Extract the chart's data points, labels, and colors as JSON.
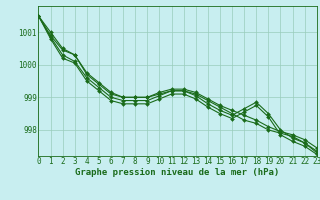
{
  "title": "Graphe pression niveau de la mer (hPa)",
  "xlabel_hours": [
    0,
    1,
    2,
    3,
    4,
    5,
    6,
    7,
    8,
    9,
    10,
    11,
    12,
    13,
    14,
    15,
    16,
    17,
    18,
    19,
    20,
    21,
    22,
    23
  ],
  "line1": [
    1001.5,
    1001.0,
    1000.5,
    1000.3,
    999.7,
    999.4,
    999.1,
    999.0,
    999.0,
    999.0,
    999.1,
    999.2,
    999.2,
    999.1,
    998.9,
    998.7,
    998.5,
    998.3,
    998.2,
    998.0,
    997.9,
    997.8,
    997.6,
    997.3
  ],
  "line2": [
    1001.5,
    1000.9,
    1000.45,
    1000.3,
    999.75,
    999.45,
    999.15,
    999.0,
    999.0,
    999.0,
    999.15,
    999.25,
    999.25,
    999.15,
    998.95,
    998.75,
    998.6,
    998.45,
    998.3,
    998.1,
    997.95,
    997.85,
    997.7,
    997.45
  ],
  "line3": [
    1001.5,
    1000.85,
    1000.3,
    1000.1,
    999.6,
    999.3,
    999.0,
    998.9,
    998.9,
    998.9,
    999.05,
    999.2,
    999.2,
    999.05,
    998.8,
    998.6,
    998.45,
    998.65,
    998.85,
    998.5,
    998.0,
    997.75,
    997.6,
    997.35
  ],
  "line4": [
    1001.5,
    1000.8,
    1000.2,
    1000.05,
    999.5,
    999.2,
    998.9,
    998.8,
    998.8,
    998.8,
    998.95,
    999.1,
    999.1,
    998.95,
    998.7,
    998.5,
    998.35,
    998.55,
    998.75,
    998.4,
    997.85,
    997.65,
    997.5,
    997.25
  ],
  "yticks": [
    998,
    999,
    1000,
    1001
  ],
  "ylim": [
    997.2,
    1001.8
  ],
  "xlim": [
    0,
    23
  ],
  "line_color": "#1a6b1a",
  "bg_color": "#c8eef0",
  "grid_color": "#99ccbb",
  "marker": "D",
  "marker_size": 2.0,
  "line_width": 0.8,
  "title_fontsize": 6.5,
  "tick_fontsize": 5.5,
  "fig_width": 3.2,
  "fig_height": 2.0,
  "dpi": 100
}
